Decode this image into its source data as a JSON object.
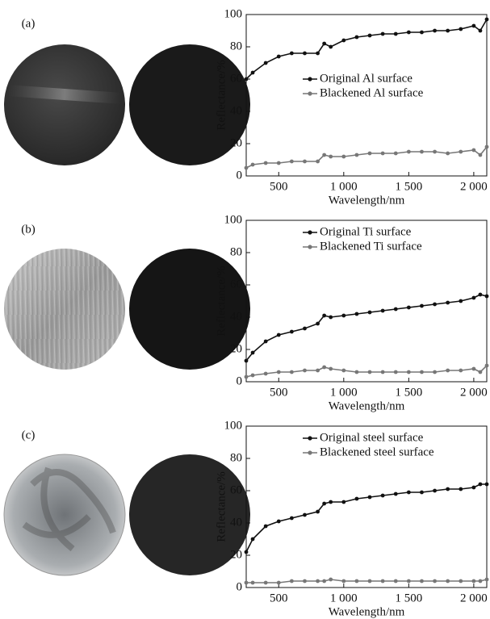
{
  "chart_data": [
    {
      "type": "line",
      "panel_label": "(a)",
      "xlabel": "Wavelength/nm",
      "ylabel": "Reflectance/%",
      "legend": "center-right",
      "x": [
        250,
        300,
        400,
        500,
        600,
        700,
        800,
        850,
        900,
        1000,
        1100,
        1200,
        1300,
        1400,
        1500,
        1600,
        1700,
        1800,
        1900,
        2000,
        2050,
        2100
      ],
      "series": [
        {
          "name": "Original Al surface",
          "color": "#111111",
          "values": [
            60,
            64,
            70,
            74,
            76,
            76,
            76,
            82,
            80,
            84,
            86,
            87,
            88,
            88,
            89,
            89,
            90,
            90,
            91,
            93,
            90,
            97
          ]
        },
        {
          "name": "Blackened Al surface",
          "color": "#777777",
          "values": [
            5,
            7,
            8,
            8,
            9,
            9,
            9,
            13,
            12,
            12,
            13,
            14,
            14,
            14,
            15,
            15,
            15,
            14,
            15,
            16,
            13,
            18
          ]
        }
      ],
      "xlim": [
        250,
        2100
      ],
      "ylim": [
        0,
        100
      ],
      "xticks": [
        500,
        {
          "value": 1000,
          "label": "1 000"
        },
        {
          "value": 1500,
          "label": "1 500"
        },
        {
          "value": 2000,
          "label": "2 000"
        }
      ],
      "yticks": [
        0,
        20,
        40,
        60,
        80,
        100
      ]
    },
    {
      "type": "line",
      "panel_label": "(b)",
      "xlabel": "Wavelength/nm",
      "ylabel": "Reflectance/%",
      "legend": "upper-right",
      "x": [
        250,
        300,
        400,
        500,
        600,
        700,
        800,
        850,
        900,
        1000,
        1100,
        1200,
        1300,
        1400,
        1500,
        1600,
        1700,
        1800,
        1900,
        2000,
        2050,
        2100
      ],
      "series": [
        {
          "name": "Original Ti surface",
          "color": "#111111",
          "values": [
            13,
            18,
            25,
            29,
            31,
            33,
            36,
            41,
            40,
            41,
            42,
            43,
            44,
            45,
            46,
            47,
            48,
            49,
            50,
            52,
            54,
            53
          ]
        },
        {
          "name": "Blackened Ti surface",
          "color": "#777777",
          "values": [
            3,
            4,
            5,
            6,
            6,
            7,
            7,
            9,
            8,
            7,
            6,
            6,
            6,
            6,
            6,
            6,
            6,
            7,
            7,
            8,
            6,
            10
          ]
        }
      ],
      "xlim": [
        250,
        2100
      ],
      "ylim": [
        0,
        100
      ],
      "xticks": [
        500,
        {
          "value": 1000,
          "label": "1 000"
        },
        {
          "value": 1500,
          "label": "1 500"
        },
        {
          "value": 2000,
          "label": "2 000"
        }
      ],
      "yticks": [
        0,
        20,
        40,
        60,
        80,
        100
      ]
    },
    {
      "type": "line",
      "panel_label": "(c)",
      "xlabel": "Wavelength/nm",
      "ylabel": "Reflectance/%",
      "legend": "upper-right",
      "x": [
        250,
        300,
        400,
        500,
        600,
        700,
        800,
        850,
        900,
        1000,
        1100,
        1200,
        1300,
        1400,
        1500,
        1600,
        1700,
        1800,
        1900,
        2000,
        2050,
        2100
      ],
      "series": [
        {
          "name": "Original steel surface",
          "color": "#111111",
          "values": [
            22,
            30,
            38,
            41,
            43,
            45,
            47,
            52,
            53,
            53,
            55,
            56,
            57,
            58,
            59,
            59,
            60,
            61,
            61,
            62,
            64,
            64
          ]
        },
        {
          "name": "Blackened steel surface",
          "color": "#777777",
          "values": [
            3,
            3,
            3,
            3,
            4,
            4,
            4,
            4,
            5,
            4,
            4,
            4,
            4,
            4,
            4,
            4,
            4,
            4,
            4,
            4,
            4,
            5
          ]
        }
      ],
      "xlim": [
        250,
        2100
      ],
      "ylim": [
        0,
        100
      ],
      "xticks": [
        500,
        {
          "value": 1000,
          "label": "1 000"
        },
        {
          "value": 1500,
          "label": "1 500"
        },
        {
          "value": 2000,
          "label": "2 000"
        }
      ],
      "yticks": [
        0,
        20,
        40,
        60,
        80,
        100
      ]
    }
  ]
}
